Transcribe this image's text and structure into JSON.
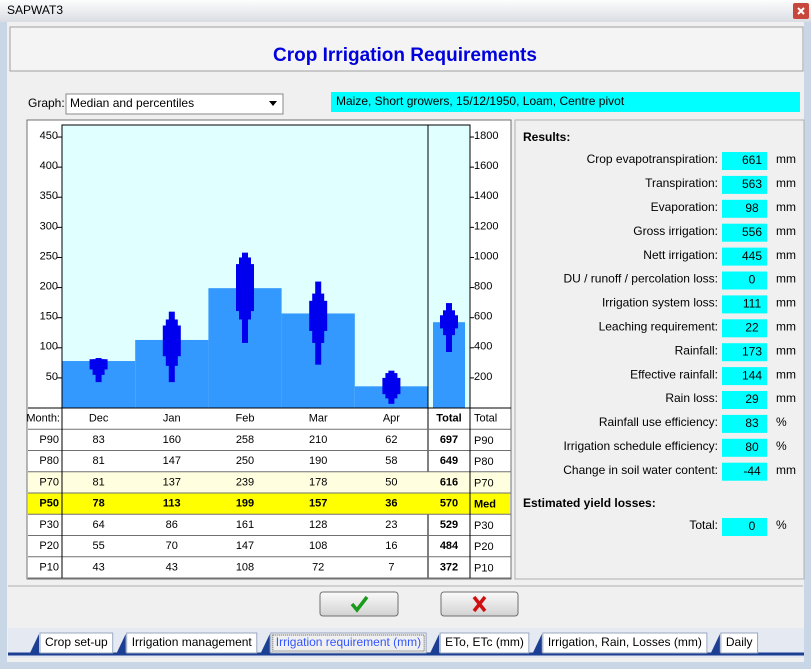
{
  "window": {
    "title": "SAPWAT3"
  },
  "header": {
    "title": "Crop Irrigation Requirements"
  },
  "graph": {
    "label": "Graph:",
    "selected": "Median and percentiles"
  },
  "description": "Maize, Short growers, 15/12/1950, Loam, Centre pivot",
  "chart_data": {
    "type": "bar",
    "categories": [
      "Dec",
      "Jan",
      "Feb",
      "Mar",
      "Apr"
    ],
    "month_label": "Month:",
    "total_label": "Total",
    "ylim": [
      0,
      470
    ],
    "yticks": [
      50,
      100,
      150,
      200,
      250,
      300,
      350,
      400,
      450
    ],
    "y2lim": [
      0,
      1880
    ],
    "y2ticks": [
      200,
      400,
      600,
      800,
      1000,
      1200,
      1400,
      1600,
      1800
    ],
    "bar_color": "#3399ff",
    "range_color": "#0000ee",
    "plot_color": "#e0ffff",
    "series": [
      {
        "name": "P90",
        "values": [
          83,
          160,
          258,
          210,
          62
        ],
        "total": 697
      },
      {
        "name": "P80",
        "values": [
          81,
          147,
          250,
          190,
          58
        ],
        "total": 649
      },
      {
        "name": "P70",
        "values": [
          81,
          137,
          239,
          178,
          50
        ],
        "total": 616,
        "row_color": "#ffffe0"
      },
      {
        "name": "P50",
        "alias": "Med",
        "values": [
          78,
          113,
          199,
          157,
          36
        ],
        "total": 570,
        "row_color": "#ffff00",
        "bold": true,
        "bar": true
      },
      {
        "name": "P30",
        "values": [
          64,
          86,
          161,
          128,
          23
        ],
        "total": 529
      },
      {
        "name": "P20",
        "values": [
          55,
          70,
          147,
          108,
          16
        ],
        "total": 484
      },
      {
        "name": "P10",
        "values": [
          43,
          43,
          108,
          72,
          7
        ],
        "total": 372
      }
    ]
  },
  "results": {
    "title": "Results:",
    "items": [
      {
        "label": "Crop evapotranspiration:",
        "value": 661,
        "unit": "mm"
      },
      {
        "label": "Transpiration:",
        "value": 563,
        "unit": "mm"
      },
      {
        "label": "Evaporation:",
        "value": 98,
        "unit": "mm"
      },
      {
        "label": "Gross irrigation:",
        "value": 556,
        "unit": "mm"
      },
      {
        "label": "Nett irrigation:",
        "value": 445,
        "unit": "mm"
      },
      {
        "label": "DU / runoff / percolation loss:",
        "value": 0,
        "unit": "mm"
      },
      {
        "label": "Irrigation system loss:",
        "value": 111,
        "unit": "mm"
      },
      {
        "label": "Leaching requirement:",
        "value": 22,
        "unit": "mm"
      },
      {
        "label": "Rainfall:",
        "value": 173,
        "unit": "mm"
      },
      {
        "label": "Effective rainfall:",
        "value": 144,
        "unit": "mm"
      },
      {
        "label": "Rain loss:",
        "value": 29,
        "unit": "mm"
      },
      {
        "label": "Rainfall use efficiency:",
        "value": 83,
        "unit": "%"
      },
      {
        "label": "Irrigation schedule efficiency:",
        "value": 80,
        "unit": "%"
      },
      {
        "label": "Change in soil water content:",
        "value": -44,
        "unit": "mm"
      }
    ]
  },
  "yield": {
    "title": "Estimated yield losses:",
    "items": [
      {
        "label": "Total:",
        "value": 0,
        "unit": "%"
      }
    ]
  },
  "tabs": [
    {
      "label": "Crop set-up"
    },
    {
      "label": "Irrigation management"
    },
    {
      "label": "Irrigation requirement (mm)",
      "active": true
    },
    {
      "label": "ETo, ETc (mm)"
    },
    {
      "label": "Irrigation, Rain, Losses (mm)"
    },
    {
      "label": "Daily"
    }
  ]
}
